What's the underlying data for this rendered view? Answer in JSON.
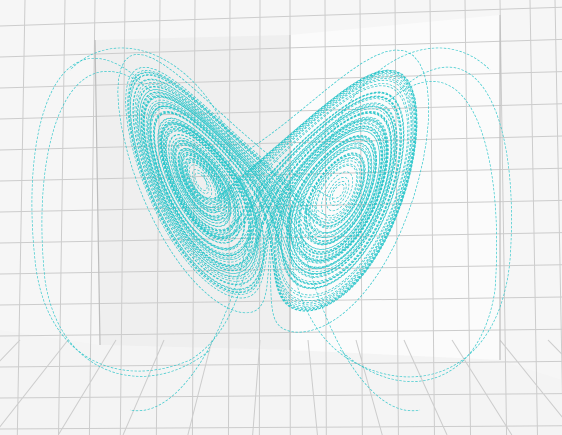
{
  "chart_data": {
    "type": "line",
    "title": "",
    "xlabel": "",
    "ylabel": "",
    "zlabel": "",
    "grid": true,
    "legend": "none",
    "line_style": "dashed",
    "colors": {
      "trajectory": "#22c3c8",
      "pane_back": "#efefef",
      "pane_left": "#f6f6f6",
      "pane_floor": "#f4f4f4",
      "pane_right": "#fbfbfb",
      "grid": "#cccccc"
    }
  }
}
